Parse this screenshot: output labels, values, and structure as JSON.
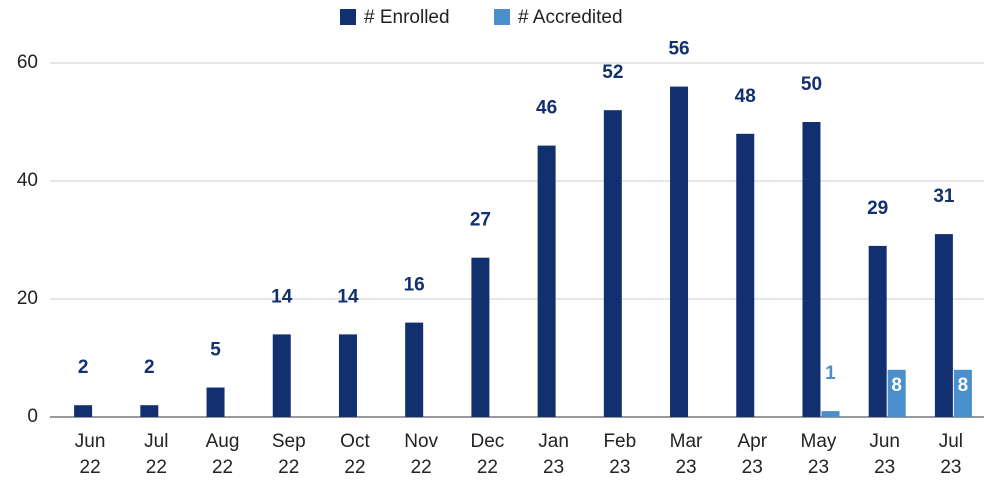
{
  "chart_data": {
    "type": "bar",
    "categories": [
      "Jun 22",
      "Jul 22",
      "Aug 22",
      "Sep 22",
      "Oct 22",
      "Nov 22",
      "Dec 22",
      "Jan 23",
      "Feb 23",
      "Mar 23",
      "Apr 23",
      "May 23",
      "Jun 23",
      "Jul 23"
    ],
    "series": [
      {
        "name": "# Enrolled",
        "color": "#12306f",
        "values": [
          2,
          2,
          5,
          14,
          14,
          16,
          27,
          46,
          52,
          56,
          48,
          50,
          29,
          31
        ]
      },
      {
        "name": "# Accredited",
        "color": "#4a8fcb",
        "values": [
          null,
          null,
          null,
          null,
          null,
          null,
          null,
          null,
          null,
          null,
          null,
          1,
          8,
          8
        ]
      }
    ],
    "ylim": [
      0,
      60
    ],
    "yticks": [
      0,
      20,
      40,
      60
    ],
    "grid": true,
    "legend": "top"
  }
}
